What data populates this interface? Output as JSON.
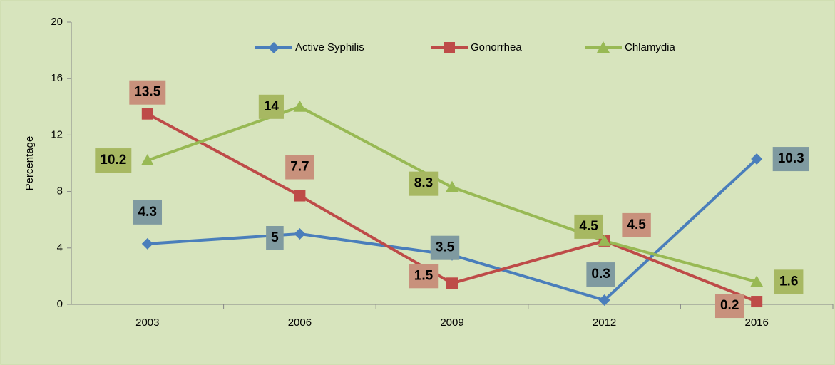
{
  "chart_data": {
    "type": "line",
    "y_label": "Percentage",
    "categories": [
      "2003",
      "2006",
      "2009",
      "2012",
      "2016"
    ],
    "series": [
      {
        "name": "Active Syphilis",
        "color": "#4a7ebb",
        "label_color": "#7f9aa0",
        "values": [
          4.3,
          5,
          3.5,
          0.3,
          10.3
        ]
      },
      {
        "name": "Gonorrhea",
        "color": "#be4b48",
        "label_color": "#c8917c",
        "values": [
          13.5,
          7.7,
          1.5,
          4.5,
          0.2
        ]
      },
      {
        "name": "Chlamydia",
        "color": "#98b954",
        "label_color": "#a7b862",
        "values": [
          10.2,
          14,
          8.3,
          4.5,
          1.6
        ]
      }
    ],
    "ylim": [
      0,
      20
    ],
    "yticks": [
      0,
      4,
      8,
      12,
      16,
      20
    ],
    "legend": "top"
  }
}
